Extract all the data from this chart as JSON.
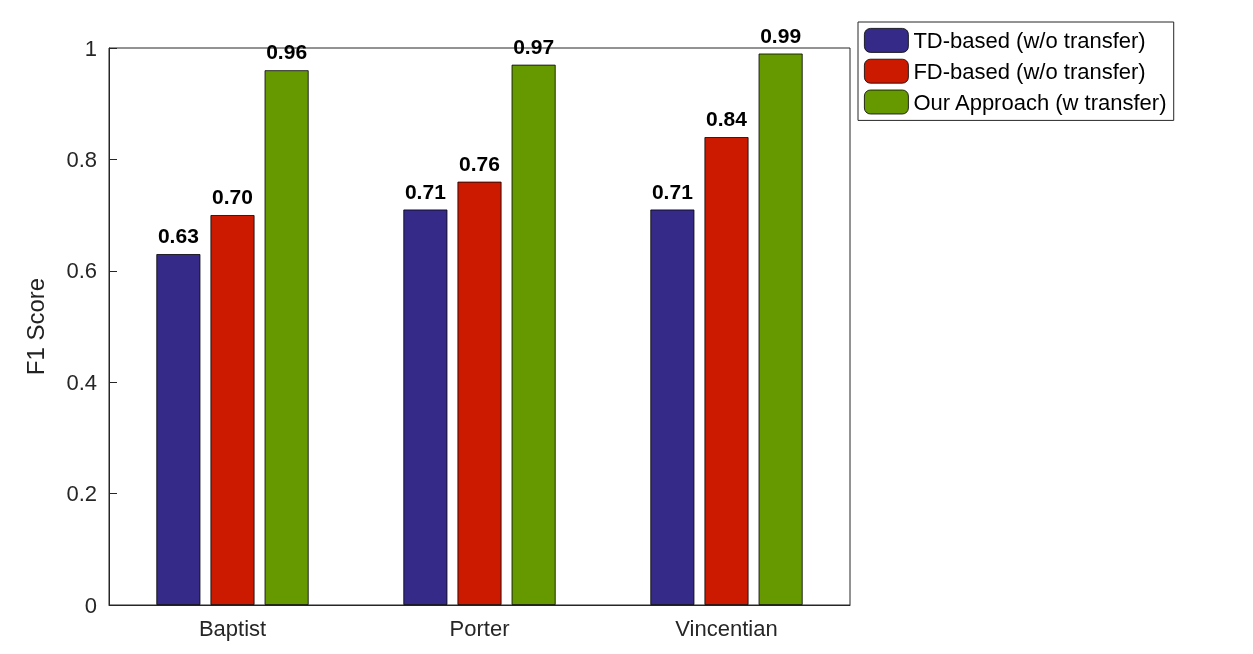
{
  "chart_data": {
    "type": "bar",
    "ylabel": "F1 Score",
    "categories": [
      "Baptist",
      "Porter",
      "Vincentian"
    ],
    "series": [
      {
        "name": "TD-based (w/o transfer)",
        "color": "#352a87",
        "values": [
          0.63,
          0.71,
          0.71
        ],
        "value_labels": [
          "0.63",
          "0.71",
          "0.71"
        ]
      },
      {
        "name": "FD-based (w/o transfer)",
        "color": "#cc1a00",
        "values": [
          0.7,
          0.76,
          0.84
        ],
        "value_labels": [
          "0.70",
          "0.76",
          "0.84"
        ]
      },
      {
        "name": "Our Approach (w transfer)",
        "color": "#669900",
        "values": [
          0.96,
          0.97,
          0.99
        ],
        "value_labels": [
          "0.96",
          "0.97",
          "0.99"
        ]
      }
    ],
    "ylim": [
      0,
      1
    ],
    "yticks": [
      0,
      0.2,
      0.4,
      0.6,
      0.8,
      1
    ],
    "grid": false,
    "legend": "top right"
  }
}
